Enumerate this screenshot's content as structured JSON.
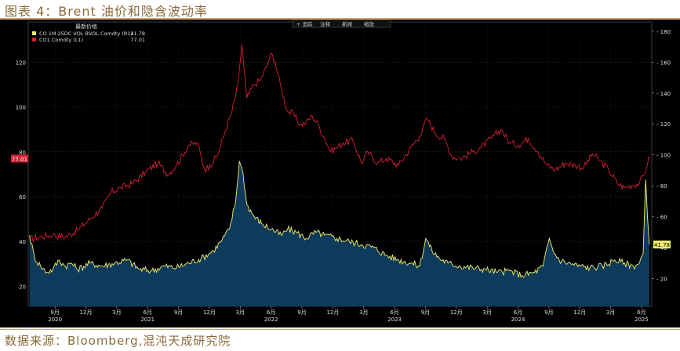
{
  "figure": {
    "title": "图表 4：Brent 油价和隐含波动率",
    "source": "数据来源：Bloomberg,混沌天成研究院"
  },
  "toolbar": {
    "items": [
      "+ 追踪",
      "注释",
      "新闻",
      "缩放"
    ]
  },
  "legend": {
    "header": "最新价格",
    "entries": [
      {
        "name": "CO 1M 25DC VOL BVOL Comdty (R1)",
        "value": "41.78",
        "color": "#f5f06a"
      },
      {
        "name": "CO1 Comdty (L1)",
        "value": "77.01",
        "color": "#d81f36"
      }
    ]
  },
  "chart_data": {
    "type": "line",
    "title": "",
    "x_ticks": [
      {
        "label": "9月",
        "year": "2020",
        "t": 2020.667
      },
      {
        "label": "12月",
        "year": "",
        "t": 2020.917
      },
      {
        "label": "3月",
        "year": "",
        "t": 2021.167
      },
      {
        "label": "6月",
        "year": "2021",
        "t": 2021.417
      },
      {
        "label": "9月",
        "year": "",
        "t": 2021.667
      },
      {
        "label": "12月",
        "year": "",
        "t": 2021.917
      },
      {
        "label": "3月",
        "year": "",
        "t": 2022.167
      },
      {
        "label": "6月",
        "year": "2022",
        "t": 2022.417
      },
      {
        "label": "9月",
        "year": "",
        "t": 2022.667
      },
      {
        "label": "12月",
        "year": "",
        "t": 2022.917
      },
      {
        "label": "3月",
        "year": "",
        "t": 2023.167
      },
      {
        "label": "6月",
        "year": "2023",
        "t": 2023.417
      },
      {
        "label": "9月",
        "year": "",
        "t": 2023.667
      },
      {
        "label": "12月",
        "year": "",
        "t": 2023.917
      },
      {
        "label": "3月",
        "year": "",
        "t": 2024.167
      },
      {
        "label": "6月",
        "year": "2024",
        "t": 2024.417
      },
      {
        "label": "9月",
        "year": "",
        "t": 2024.667
      },
      {
        "label": "12月",
        "year": "",
        "t": 2024.917
      },
      {
        "label": "3月",
        "year": "",
        "t": 2025.167
      },
      {
        "label": "6月",
        "year": "2025",
        "t": 2025.417
      }
    ],
    "xlim": [
      2020.45,
      2025.5
    ],
    "left_axis": {
      "ticks": [
        20,
        40,
        60,
        80,
        100,
        120
      ],
      "ylim": [
        11,
        138
      ]
    },
    "right_axis": {
      "ticks": [
        20,
        40,
        60,
        80,
        100,
        120,
        140,
        160,
        180
      ],
      "ylim": [
        2,
        186
      ]
    },
    "series": [
      {
        "name": "CO1 Comdty (L1)",
        "axis": "left",
        "color": "#d81f36",
        "last_value": "77.01",
        "points": [
          [
            2020.46,
            41
          ],
          [
            2020.55,
            42
          ],
          [
            2020.65,
            43
          ],
          [
            2020.75,
            42
          ],
          [
            2020.85,
            45
          ],
          [
            2020.95,
            50
          ],
          [
            2021.05,
            55
          ],
          [
            2021.12,
            62
          ],
          [
            2021.2,
            64
          ],
          [
            2021.3,
            66
          ],
          [
            2021.4,
            71
          ],
          [
            2021.5,
            75
          ],
          [
            2021.58,
            70
          ],
          [
            2021.65,
            74
          ],
          [
            2021.75,
            83
          ],
          [
            2021.82,
            84
          ],
          [
            2021.88,
            72
          ],
          [
            2021.92,
            74
          ],
          [
            2021.98,
            78
          ],
          [
            2022.05,
            90
          ],
          [
            2022.1,
            98
          ],
          [
            2022.15,
            110
          ],
          [
            2022.18,
            128
          ],
          [
            2022.22,
            104
          ],
          [
            2022.28,
            110
          ],
          [
            2022.33,
            112
          ],
          [
            2022.38,
            118
          ],
          [
            2022.42,
            124
          ],
          [
            2022.45,
            120
          ],
          [
            2022.5,
            108
          ],
          [
            2022.55,
            98
          ],
          [
            2022.6,
            97
          ],
          [
            2022.65,
            92
          ],
          [
            2022.7,
            93
          ],
          [
            2022.75,
            96
          ],
          [
            2022.8,
            92
          ],
          [
            2022.85,
            86
          ],
          [
            2022.9,
            80
          ],
          [
            2022.95,
            82
          ],
          [
            2023.0,
            84
          ],
          [
            2023.08,
            85
          ],
          [
            2023.15,
            75
          ],
          [
            2023.2,
            80
          ],
          [
            2023.28,
            75
          ],
          [
            2023.35,
            77
          ],
          [
            2023.45,
            74
          ],
          [
            2023.55,
            82
          ],
          [
            2023.62,
            87
          ],
          [
            2023.68,
            95
          ],
          [
            2023.75,
            88
          ],
          [
            2023.82,
            86
          ],
          [
            2023.88,
            78
          ],
          [
            2023.95,
            77
          ],
          [
            2024.05,
            80
          ],
          [
            2024.12,
            82
          ],
          [
            2024.2,
            86
          ],
          [
            2024.28,
            90
          ],
          [
            2024.35,
            84
          ],
          [
            2024.42,
            83
          ],
          [
            2024.5,
            86
          ],
          [
            2024.58,
            80
          ],
          [
            2024.65,
            74
          ],
          [
            2024.72,
            72
          ],
          [
            2024.8,
            75
          ],
          [
            2024.88,
            74
          ],
          [
            2024.95,
            73
          ],
          [
            2025.02,
            79
          ],
          [
            2025.08,
            76
          ],
          [
            2025.15,
            72
          ],
          [
            2025.22,
            66
          ],
          [
            2025.28,
            64
          ],
          [
            2025.34,
            65
          ],
          [
            2025.4,
            66
          ],
          [
            2025.44,
            70
          ],
          [
            2025.47,
            76
          ],
          [
            2025.48,
            77
          ]
        ]
      },
      {
        "name": "CO 1M 25DC VOL BVOL Comdty (R1)",
        "axis": "right",
        "color": "#f5f06a",
        "last_value": "41.78",
        "points": [
          [
            2020.46,
            48
          ],
          [
            2020.5,
            34
          ],
          [
            2020.55,
            28
          ],
          [
            2020.6,
            24
          ],
          [
            2020.65,
            26
          ],
          [
            2020.7,
            32
          ],
          [
            2020.75,
            28
          ],
          [
            2020.8,
            30
          ],
          [
            2020.85,
            26
          ],
          [
            2020.95,
            30
          ],
          [
            2021.05,
            28
          ],
          [
            2021.15,
            30
          ],
          [
            2021.25,
            32
          ],
          [
            2021.35,
            26
          ],
          [
            2021.45,
            25
          ],
          [
            2021.55,
            28
          ],
          [
            2021.65,
            27
          ],
          [
            2021.75,
            30
          ],
          [
            2021.85,
            33
          ],
          [
            2021.95,
            38
          ],
          [
            2022.02,
            45
          ],
          [
            2022.08,
            52
          ],
          [
            2022.13,
            70
          ],
          [
            2022.16,
            96
          ],
          [
            2022.19,
            88
          ],
          [
            2022.22,
            68
          ],
          [
            2022.28,
            60
          ],
          [
            2022.35,
            55
          ],
          [
            2022.42,
            52
          ],
          [
            2022.5,
            48
          ],
          [
            2022.55,
            52
          ],
          [
            2022.62,
            50
          ],
          [
            2022.7,
            46
          ],
          [
            2022.78,
            50
          ],
          [
            2022.85,
            48
          ],
          [
            2022.95,
            46
          ],
          [
            2023.05,
            44
          ],
          [
            2023.15,
            42
          ],
          [
            2023.25,
            40
          ],
          [
            2023.35,
            35
          ],
          [
            2023.45,
            32
          ],
          [
            2023.55,
            30
          ],
          [
            2023.62,
            28
          ],
          [
            2023.67,
            46
          ],
          [
            2023.72,
            38
          ],
          [
            2023.78,
            33
          ],
          [
            2023.85,
            30
          ],
          [
            2023.95,
            28
          ],
          [
            2024.05,
            27
          ],
          [
            2024.15,
            26
          ],
          [
            2024.25,
            24
          ],
          [
            2024.35,
            25
          ],
          [
            2024.45,
            22
          ],
          [
            2024.55,
            24
          ],
          [
            2024.62,
            28
          ],
          [
            2024.67,
            46
          ],
          [
            2024.7,
            38
          ],
          [
            2024.75,
            32
          ],
          [
            2024.82,
            30
          ],
          [
            2024.92,
            28
          ],
          [
            2025.0,
            27
          ],
          [
            2025.1,
            28
          ],
          [
            2025.2,
            32
          ],
          [
            2025.28,
            30
          ],
          [
            2025.35,
            28
          ],
          [
            2025.4,
            30
          ],
          [
            2025.43,
            36
          ],
          [
            2025.45,
            84
          ],
          [
            2025.465,
            60
          ],
          [
            2025.48,
            42
          ]
        ]
      }
    ]
  }
}
